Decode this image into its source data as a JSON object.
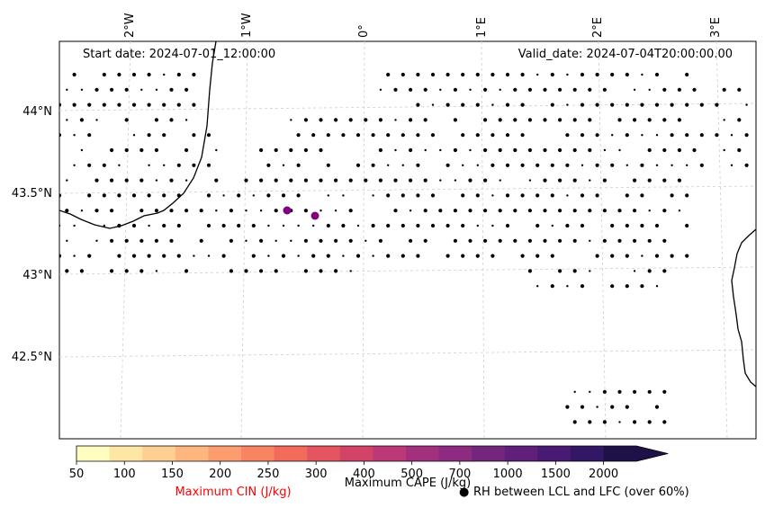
{
  "map": {
    "start_date": "Start date: 2024-07-01_12:00:00",
    "valid_date": "Valid_date: 2024-07-04T20:00:00.00",
    "lon_labels": [
      "2°W",
      "1°W",
      "0°",
      "1°E",
      "2°E",
      "3°E"
    ],
    "lat_labels": [
      "44°N",
      "43.5°N",
      "43°N",
      "42.5°N"
    ],
    "markers": {
      "color": "#800080",
      "count": 2
    }
  },
  "colorbar": {
    "ticks": [
      "50",
      "100",
      "150",
      "200",
      "250",
      "300",
      "400",
      "500",
      "700",
      "1000",
      "1500",
      "2000"
    ],
    "colors": [
      "#fffdbf",
      "#fee7a4",
      "#fecf92",
      "#feb67f",
      "#fd9c6f",
      "#f98462",
      "#f26b5b",
      "#e55561",
      "#d24367",
      "#bd3876",
      "#a3307c",
      "#8c2b7f",
      "#74267d",
      "#5f1f7a",
      "#491a74",
      "#311764",
      "#1d1147"
    ],
    "cin_label": "Maximum CIN (J/kg)",
    "cin_color": "#ff0000",
    "cape_label": "Maximum CAPE (J/kg)",
    "rh_label": "RH between LCL and LFC (over 60%)",
    "rh_symbol": "●"
  }
}
